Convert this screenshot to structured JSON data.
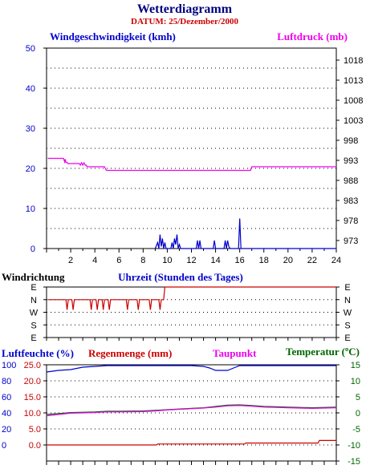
{
  "title": "Wetterdiagramm",
  "subtitle": "DATUM: 25/Dezember/2000",
  "colors": {
    "title": "#00007f",
    "subtitle": "#cc0000",
    "wind": "#0000cc",
    "pressure": "#ee00ee",
    "direction": "#cc0000",
    "humidity": "#0000cc",
    "rain": "#cc0000",
    "dewpoint": "#ee00ee",
    "temperature": "#006600",
    "grid": "#000000"
  },
  "labels": {
    "wind": "Windgeschwindigkeit (kmh)",
    "pressure": "Luftdruck (mb)",
    "direction": "Windrichtung",
    "time": "Uhrzeit (Stunden des Tages)",
    "humidity": "Luftfeuchte (%)",
    "rain": "Regenmenge (mm)",
    "dewpoint": "Taupunkt",
    "temperature": "Temperatur (ºC)"
  },
  "chart_data": [
    {
      "type": "line",
      "panel": "wind-pressure",
      "x_ticks": [
        "2",
        "4",
        "6",
        "8",
        "10",
        "12",
        "14",
        "16",
        "18",
        "20",
        "22",
        "24"
      ],
      "xlim": [
        0,
        24
      ],
      "y_left": {
        "ticks": [
          "0",
          "10",
          "20",
          "30",
          "40",
          "50"
        ],
        "lim": [
          0,
          50
        ]
      },
      "y_right": {
        "ticks": [
          "973",
          "978",
          "983",
          "988",
          "993",
          "998",
          "1003",
          "1008",
          "1013",
          "1018"
        ],
        "lim": [
          971,
          1021
        ]
      },
      "grid": true,
      "series": [
        {
          "name": "Luftdruck (mb)",
          "axis": "right",
          "points": [
            [
              0.1,
              993.5
            ],
            [
              1.4,
              993.5
            ],
            [
              1.5,
              992.6
            ],
            [
              1.55,
              993.3
            ],
            [
              1.6,
              992.5
            ],
            [
              1.7,
              992.5
            ],
            [
              1.75,
              992.2
            ],
            [
              2.7,
              992.2
            ],
            [
              2.8,
              991.8
            ],
            [
              2.9,
              992.4
            ],
            [
              3.0,
              991.8
            ],
            [
              3.1,
              992.4
            ],
            [
              3.2,
              991.8
            ],
            [
              3.3,
              991.8
            ],
            [
              3.35,
              991.4
            ],
            [
              4.8,
              991.4
            ],
            [
              4.95,
              990.5
            ],
            [
              16.9,
              990.5
            ],
            [
              17.0,
              991.4
            ],
            [
              24,
              991.4
            ]
          ]
        },
        {
          "name": "Windgeschwindigkeit (kmh)",
          "axis": "left",
          "points": [
            [
              9.0,
              0
            ],
            [
              9.2,
              1.5
            ],
            [
              9.3,
              0
            ],
            [
              9.4,
              3.5
            ],
            [
              9.5,
              0.5
            ],
            [
              9.6,
              2.5
            ],
            [
              9.7,
              0
            ],
            [
              9.8,
              1.5
            ],
            [
              9.9,
              0
            ],
            [
              10.3,
              0
            ],
            [
              10.4,
              1.5
            ],
            [
              10.5,
              0
            ],
            [
              10.6,
              2.5
            ],
            [
              10.7,
              1
            ],
            [
              10.8,
              3.5
            ],
            [
              10.9,
              0
            ],
            [
              11.0,
              1
            ],
            [
              11.1,
              0
            ],
            [
              12.4,
              0
            ],
            [
              12.5,
              2
            ],
            [
              12.6,
              0
            ],
            [
              12.7,
              2
            ],
            [
              12.8,
              0
            ],
            [
              13.8,
              0
            ],
            [
              13.9,
              2
            ],
            [
              14.0,
              0
            ],
            [
              14.7,
              0
            ],
            [
              14.8,
              2
            ],
            [
              14.9,
              0
            ],
            [
              15.0,
              2
            ],
            [
              15.1,
              0.5
            ],
            [
              15.2,
              0
            ],
            [
              15.9,
              0
            ],
            [
              16.0,
              7.5
            ],
            [
              16.1,
              0
            ],
            [
              24,
              0
            ]
          ]
        }
      ]
    },
    {
      "type": "line",
      "panel": "direction",
      "y_ticks": [
        "E",
        "N",
        "W",
        "S",
        "E"
      ],
      "grid": true,
      "series": [
        {
          "name": "Windrichtung",
          "points": [
            [
              0.1,
              0.75
            ],
            [
              1.6,
              0.75
            ],
            [
              1.7,
              0.55
            ],
            [
              1.8,
              0.75
            ],
            [
              2.1,
              0.75
            ],
            [
              2.2,
              0.55
            ],
            [
              2.3,
              0.75
            ],
            [
              3.6,
              0.75
            ],
            [
              3.7,
              0.55
            ],
            [
              3.8,
              0.75
            ],
            [
              4.1,
              0.75
            ],
            [
              4.2,
              0.55
            ],
            [
              4.3,
              0.75
            ],
            [
              4.6,
              0.75
            ],
            [
              4.7,
              0.55
            ],
            [
              4.8,
              0.75
            ],
            [
              5.1,
              0.75
            ],
            [
              5.2,
              0.55
            ],
            [
              5.3,
              0.75
            ],
            [
              6.6,
              0.75
            ],
            [
              6.7,
              0.55
            ],
            [
              6.8,
              0.75
            ],
            [
              7.5,
              0.75
            ],
            [
              7.6,
              0.55
            ],
            [
              7.7,
              0.75
            ],
            [
              8.5,
              0.75
            ],
            [
              8.6,
              0.55
            ],
            [
              8.7,
              0.75
            ],
            [
              9.3,
              0.75
            ],
            [
              9.4,
              0.55
            ],
            [
              9.5,
              0.75
            ],
            [
              9.7,
              0.75
            ],
            [
              9.8,
              1
            ],
            [
              24,
              1
            ]
          ]
        }
      ]
    },
    {
      "type": "line",
      "panel": "humidity-temperature",
      "y_left_outer": {
        "ticks": [
          "0",
          "20",
          "40",
          "60",
          "80",
          "100"
        ],
        "lim": [
          0,
          100
        ]
      },
      "y_left_inner": {
        "ticks": [
          "0.0",
          "5.0",
          "10.0",
          "15.0",
          "20.0",
          "25.0"
        ],
        "lim": [
          0,
          25
        ]
      },
      "y_right": {
        "ticks": [
          "-15",
          "-10",
          "-5",
          "0",
          "5",
          "10",
          "15"
        ],
        "lim": [
          -15,
          15
        ]
      },
      "grid": true,
      "series": [
        {
          "name": "Luftfeuchte (%)",
          "axis": "left_outer",
          "points": [
            [
              0,
              91
            ],
            [
              1,
              93
            ],
            [
              2,
              94
            ],
            [
              3,
              97
            ],
            [
              4,
              98
            ],
            [
              5,
              99
            ],
            [
              6,
              99
            ],
            [
              10,
              99
            ],
            [
              12,
              99
            ],
            [
              13,
              98
            ],
            [
              13.5,
              96
            ],
            [
              14,
              93
            ],
            [
              15,
              93
            ],
            [
              15.5,
              96
            ],
            [
              16,
              99
            ],
            [
              18,
              99
            ],
            [
              24,
              99
            ]
          ]
        },
        {
          "name": "Temperatur (ºC)",
          "axis": "right",
          "points": [
            [
              0,
              -0.5
            ],
            [
              1,
              -0.2
            ],
            [
              2,
              0.1
            ],
            [
              3,
              0.2
            ],
            [
              4,
              0.3
            ],
            [
              5,
              0.5
            ],
            [
              6,
              0.5
            ],
            [
              8,
              0.6
            ],
            [
              9,
              0.8
            ],
            [
              10,
              1.0
            ],
            [
              12,
              1.4
            ],
            [
              13,
              1.6
            ],
            [
              14,
              2.0
            ],
            [
              15,
              2.4
            ],
            [
              16,
              2.5
            ],
            [
              17,
              2.3
            ],
            [
              18,
              2.0
            ],
            [
              19,
              1.9
            ],
            [
              20,
              1.8
            ],
            [
              21,
              1.7
            ],
            [
              22,
              1.6
            ],
            [
              23,
              1.7
            ],
            [
              24,
              1.8
            ]
          ]
        },
        {
          "name": "Taupunkt",
          "axis": "right",
          "points": [
            [
              0,
              -0.9
            ],
            [
              1,
              -0.5
            ],
            [
              2,
              -0.1
            ],
            [
              3,
              0.0
            ],
            [
              4,
              0.1
            ],
            [
              5,
              0.3
            ],
            [
              6,
              0.3
            ],
            [
              8,
              0.4
            ],
            [
              9,
              0.6
            ],
            [
              10,
              0.9
            ],
            [
              12,
              1.3
            ],
            [
              13,
              1.5
            ],
            [
              14,
              1.8
            ],
            [
              15,
              2.2
            ],
            [
              16,
              2.3
            ],
            [
              17,
              2.1
            ],
            [
              18,
              1.8
            ],
            [
              19,
              1.7
            ],
            [
              20,
              1.6
            ],
            [
              21,
              1.5
            ],
            [
              22,
              1.4
            ],
            [
              23,
              1.5
            ],
            [
              24,
              1.6
            ]
          ]
        },
        {
          "name": "Regenmenge (mm)",
          "axis": "left_inner",
          "points": [
            [
              0,
              0
            ],
            [
              9.1,
              0
            ],
            [
              9.2,
              0.3
            ],
            [
              16.4,
              0.3
            ],
            [
              16.5,
              0.6
            ],
            [
              22.5,
              0.6
            ],
            [
              22.6,
              1.4
            ],
            [
              24,
              1.4
            ]
          ]
        }
      ]
    }
  ]
}
